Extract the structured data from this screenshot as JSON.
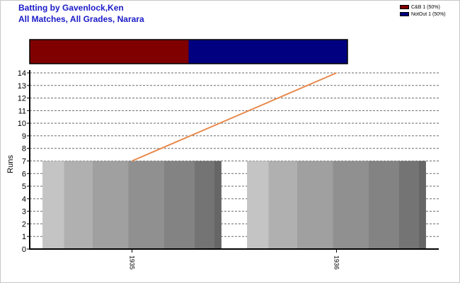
{
  "chart_data": {
    "type": "bar",
    "title_lines": [
      "Batting by Gavenlock,Ken",
      "All Matches, All Grades, Narara"
    ],
    "ylabel": "Runs",
    "categories": [
      "1935",
      "1936"
    ],
    "values": [
      7,
      7
    ],
    "line_series": {
      "values": [
        7,
        14
      ],
      "color": "#e8894a"
    },
    "ylim": [
      0,
      14
    ],
    "yticks": [
      0,
      1,
      2,
      3,
      4,
      5,
      6,
      7,
      8,
      9,
      10,
      11,
      12,
      13,
      14
    ],
    "grid": true,
    "legend_position": "top-right",
    "legend": [
      {
        "label": "C&B 1 (50%)",
        "color": "#800000"
      },
      {
        "label": "NotOut 1 (50%)",
        "color": "#000080"
      }
    ],
    "dismissals": [
      {
        "name": "C&B",
        "fraction": 0.5,
        "color": "#800000"
      },
      {
        "name": "NotOut",
        "fraction": 0.5,
        "color": "#000080"
      }
    ]
  }
}
